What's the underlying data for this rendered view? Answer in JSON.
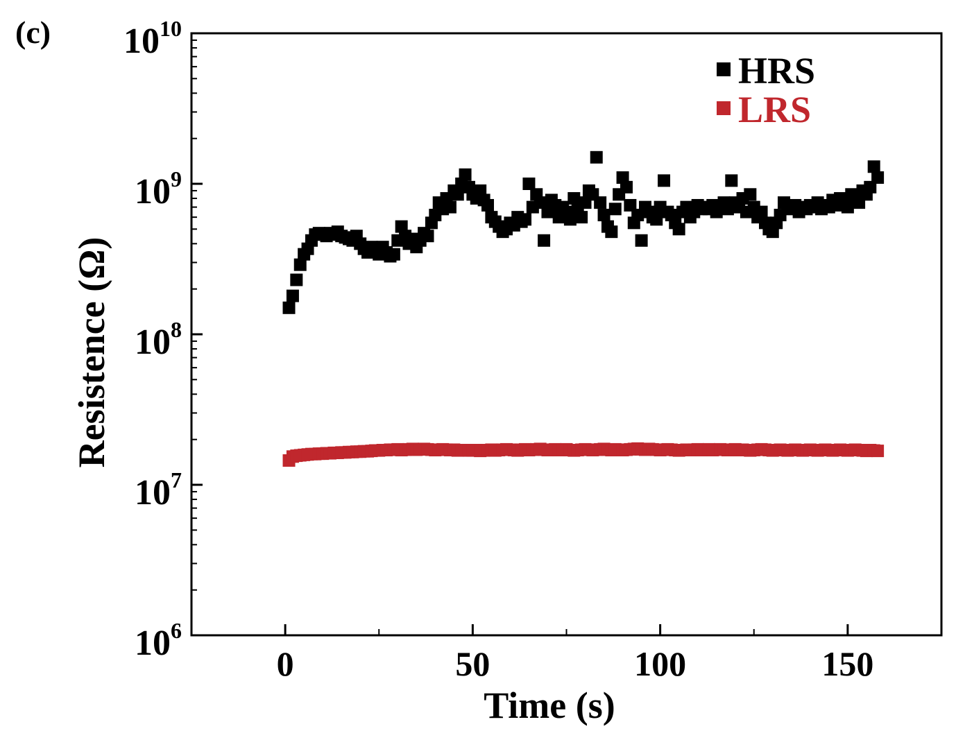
{
  "panel_label": "(c)",
  "chart_data": {
    "type": "scatter",
    "title": "",
    "xlabel": "Time (s)",
    "ylabel": "Resistence (Ω)",
    "xlim": [
      -25,
      175
    ],
    "ylim": [
      1000000,
      10000000000
    ],
    "yscale": "log",
    "x_ticks": [
      0,
      50,
      100,
      150
    ],
    "x_tick_labels": [
      "0",
      "50",
      "100",
      "150"
    ],
    "y_ticks": [
      {
        "value": 1000000,
        "base": "10",
        "exponent": "6"
      },
      {
        "value": 10000000,
        "base": "10",
        "exponent": "7"
      },
      {
        "value": 100000000,
        "base": "10",
        "exponent": "8"
      },
      {
        "value": 1000000000,
        "base": "10",
        "exponent": "9"
      },
      {
        "value": 10000000000,
        "base": "10",
        "exponent": "10"
      }
    ],
    "legend_position": "top-right",
    "series": [
      {
        "name": "HRS",
        "color": "#000000",
        "x": [
          1,
          2,
          3,
          4,
          5,
          6,
          7,
          8,
          9,
          10,
          11,
          12,
          13,
          14,
          15,
          16,
          17,
          18,
          19,
          20,
          21,
          22,
          23,
          24,
          25,
          26,
          27,
          28,
          29,
          30,
          31,
          32,
          33,
          34,
          35,
          36,
          37,
          38,
          39,
          40,
          41,
          42,
          43,
          44,
          45,
          46,
          47,
          48,
          49,
          50,
          51,
          52,
          53,
          54,
          55,
          56,
          57,
          58,
          59,
          60,
          61,
          62,
          63,
          64,
          65,
          66,
          67,
          68,
          69,
          70,
          71,
          72,
          73,
          74,
          75,
          76,
          77,
          78,
          79,
          80,
          81,
          82,
          83,
          84,
          85,
          86,
          87,
          88,
          89,
          90,
          91,
          92,
          93,
          94,
          95,
          96,
          97,
          98,
          99,
          100,
          101,
          102,
          103,
          104,
          105,
          106,
          107,
          108,
          109,
          110,
          111,
          112,
          113,
          114,
          115,
          116,
          117,
          118,
          119,
          120,
          121,
          122,
          123,
          124,
          125,
          126,
          127,
          128,
          129,
          130,
          131,
          132,
          133,
          134,
          135,
          136,
          137,
          138,
          139,
          140,
          141,
          142,
          143,
          144,
          145,
          146,
          147,
          148,
          149,
          150,
          151,
          152,
          153,
          154,
          155,
          156,
          157,
          158
        ],
        "values": [
          150000000,
          180000000,
          230000000,
          290000000,
          340000000,
          370000000,
          420000000,
          460000000,
          470000000,
          460000000,
          450000000,
          470000000,
          460000000,
          480000000,
          450000000,
          440000000,
          430000000,
          420000000,
          450000000,
          400000000,
          370000000,
          350000000,
          380000000,
          360000000,
          340000000,
          380000000,
          350000000,
          330000000,
          340000000,
          420000000,
          520000000,
          450000000,
          400000000,
          430000000,
          380000000,
          420000000,
          470000000,
          450000000,
          550000000,
          620000000,
          750000000,
          680000000,
          800000000,
          700000000,
          900000000,
          850000000,
          1000000000,
          1150000000,
          950000000,
          850000000,
          800000000,
          900000000,
          780000000,
          720000000,
          600000000,
          560000000,
          520000000,
          480000000,
          500000000,
          550000000,
          530000000,
          600000000,
          560000000,
          580000000,
          1000000000,
          700000000,
          850000000,
          750000000,
          420000000,
          650000000,
          780000000,
          720000000,
          600000000,
          700000000,
          650000000,
          580000000,
          800000000,
          700000000,
          600000000,
          750000000,
          900000000,
          850000000,
          1500000000,
          750000000,
          620000000,
          520000000,
          480000000,
          680000000,
          850000000,
          1100000000,
          950000000,
          720000000,
          550000000,
          620000000,
          420000000,
          700000000,
          650000000,
          600000000,
          580000000,
          700000000,
          1050000000,
          650000000,
          620000000,
          550000000,
          500000000,
          650000000,
          700000000,
          600000000,
          650000000,
          720000000,
          680000000,
          700000000,
          680000000,
          720000000,
          650000000,
          700000000,
          750000000,
          680000000,
          1050000000,
          750000000,
          700000000,
          800000000,
          650000000,
          850000000,
          700000000,
          600000000,
          650000000,
          550000000,
          500000000,
          480000000,
          550000000,
          620000000,
          750000000,
          680000000,
          700000000,
          720000000,
          650000000,
          700000000,
          680000000,
          720000000,
          700000000,
          750000000,
          680000000,
          720000000,
          700000000,
          780000000,
          720000000,
          800000000,
          750000000,
          700000000,
          850000000,
          800000000,
          750000000,
          900000000,
          850000000,
          950000000,
          1300000000,
          1100000000
        ]
      },
      {
        "name": "LRS",
        "color": "#c0272d",
        "x": [
          1,
          2,
          3,
          4,
          5,
          6,
          7,
          8,
          9,
          10,
          11,
          12,
          13,
          14,
          15,
          16,
          17,
          18,
          19,
          20,
          21,
          22,
          23,
          24,
          25,
          26,
          27,
          28,
          29,
          30,
          31,
          32,
          33,
          34,
          35,
          36,
          37,
          38,
          39,
          40,
          41,
          42,
          43,
          44,
          45,
          46,
          47,
          48,
          49,
          50,
          51,
          52,
          53,
          54,
          55,
          56,
          57,
          58,
          59,
          60,
          61,
          62,
          63,
          64,
          65,
          66,
          67,
          68,
          69,
          70,
          71,
          72,
          73,
          74,
          75,
          76,
          77,
          78,
          79,
          80,
          81,
          82,
          83,
          84,
          85,
          86,
          87,
          88,
          89,
          90,
          91,
          92,
          93,
          94,
          95,
          96,
          97,
          98,
          99,
          100,
          101,
          102,
          103,
          104,
          105,
          106,
          107,
          108,
          109,
          110,
          111,
          112,
          113,
          114,
          115,
          116,
          117,
          118,
          119,
          120,
          121,
          122,
          123,
          124,
          125,
          126,
          127,
          128,
          129,
          130,
          131,
          132,
          133,
          134,
          135,
          136,
          137,
          138,
          139,
          140,
          141,
          142,
          143,
          144,
          145,
          146,
          147,
          148,
          149,
          150,
          151,
          152,
          153,
          154,
          155,
          156,
          157,
          158
        ],
        "values": [
          14500000,
          15400000,
          15600000,
          15700000,
          15800000,
          15900000,
          16000000,
          16000000,
          16100000,
          16100000,
          16200000,
          16200000,
          16300000,
          16300000,
          16400000,
          16400000,
          16500000,
          16500000,
          16600000,
          16600000,
          16700000,
          16700000,
          16800000,
          16900000,
          16900000,
          17000000,
          17000000,
          17100000,
          17100000,
          17200000,
          17000000,
          17100000,
          17200000,
          17300000,
          17100000,
          17200000,
          17300000,
          17200000,
          17100000,
          17000000,
          17100000,
          17200000,
          17100000,
          17000000,
          17100000,
          16900000,
          17000000,
          17000000,
          16900000,
          16900000,
          17000000,
          16800000,
          16900000,
          17000000,
          17100000,
          16900000,
          17000000,
          17100000,
          17200000,
          17100000,
          17000000,
          16900000,
          17100000,
          17200000,
          17000000,
          17100000,
          17200000,
          17300000,
          17100000,
          17000000,
          17100000,
          17200000,
          17000000,
          17100000,
          17200000,
          17000000,
          16900000,
          17000000,
          17100000,
          17200000,
          17100000,
          17000000,
          17100000,
          17200000,
          17300000,
          17100000,
          17000000,
          17200000,
          17100000,
          17000000,
          17100000,
          17200000,
          17300000,
          17400000,
          17200000,
          17100000,
          17300000,
          17200000,
          17100000,
          17000000,
          17100000,
          17200000,
          17100000,
          17000000,
          16900000,
          17000000,
          17100000,
          17000000,
          17100000,
          17200000,
          17000000,
          17100000,
          17200000,
          17000000,
          17100000,
          17200000,
          17100000,
          17000000,
          17100000,
          17200000,
          17000000,
          17100000,
          17000000,
          16900000,
          17000000,
          17100000,
          17200000,
          17100000,
          17000000,
          16900000,
          17000000,
          17100000,
          17000000,
          16900000,
          17000000,
          17100000,
          17000000,
          16900000,
          17000000,
          17100000,
          17000000,
          16900000,
          17000000,
          17100000,
          17000000,
          16900000,
          17000000,
          17100000,
          17000000,
          16900000,
          17000000,
          17100000,
          17000000,
          16900000,
          16800000,
          17000000,
          16900000,
          16800000
        ]
      }
    ]
  }
}
